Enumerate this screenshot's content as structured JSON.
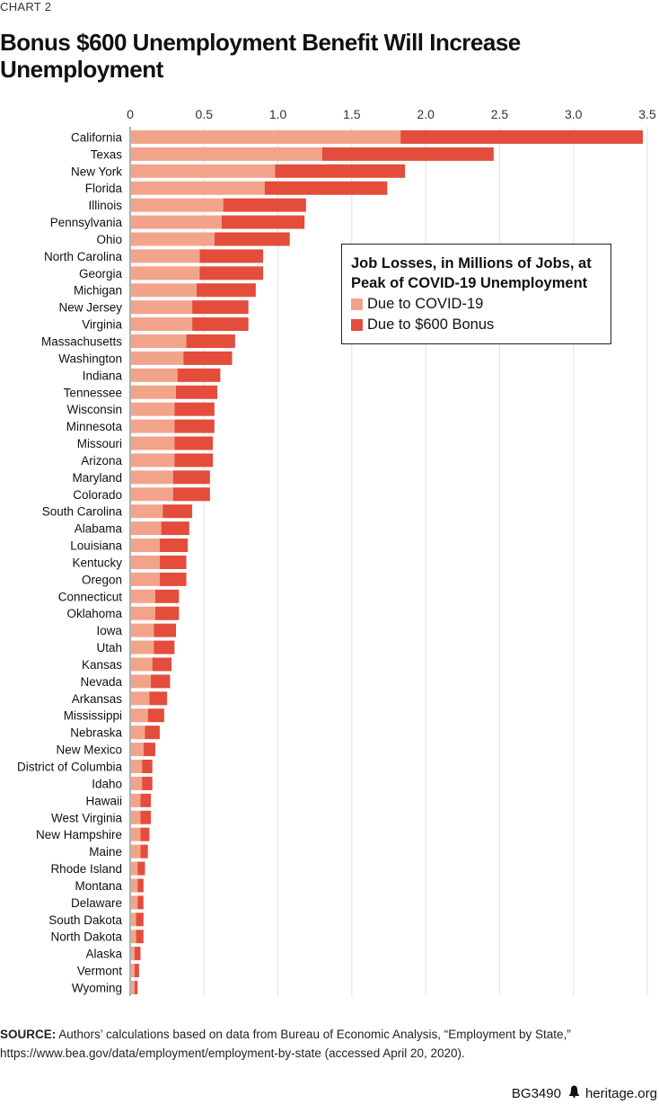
{
  "header": {
    "eyebrow": "CHART 2",
    "title": "Bonus $600 Unemployment Benefit Will Increase Unemployment"
  },
  "legend": {
    "title_line1": "Job Losses, in Millions of Jobs, at",
    "title_line2": "Peak of COVID-19 Unemployment",
    "items": [
      {
        "label": "Due to COVID-19",
        "color": "#f2a48b"
      },
      {
        "label": "Due to $600 Bonus",
        "color": "#e44c3c"
      }
    ]
  },
  "source": {
    "label": "SOURCE:",
    "text": "Authors’ calculations based on data from Bureau of Economic Analysis, “Employment by State,” https://www.bea.gov/data/employment/employment-by-state (accessed April 20, 2020)."
  },
  "footer": {
    "code": "BG3490",
    "icon": "liberty-bell-icon",
    "site": "heritage.org"
  },
  "colors": {
    "covid": "#f2a48b",
    "bonus": "#e44c3c",
    "grid": "#e2e2e2",
    "axis": "#b0b0b0"
  },
  "chart_data": {
    "type": "bar",
    "orientation": "horizontal",
    "stacked": true,
    "title": "Bonus $600 Unemployment Benefit Will Increase Unemployment",
    "xlabel": "Job Losses, in Millions of Jobs, at Peak of COVID-19 Unemployment",
    "ylabel": "",
    "xlim": [
      0,
      3.5
    ],
    "xticks": [
      0,
      0.5,
      1.0,
      1.5,
      2.0,
      2.5,
      3.0,
      3.5
    ],
    "xtick_labels": [
      "0",
      "0.5",
      "1.0",
      "1.5",
      "2.0",
      "2.5",
      "3.0",
      "3.5"
    ],
    "grid": true,
    "legend_position": "center-right",
    "categories": [
      "California",
      "Texas",
      "New York",
      "Florida",
      "Illinois",
      "Pennsylvania",
      "Ohio",
      "North Carolina",
      "Georgia",
      "Michigan",
      "New Jersey",
      "Virginia",
      "Massachusetts",
      "Washington",
      "Indiana",
      "Tennessee",
      "Wisconsin",
      "Minnesota",
      "Missouri",
      "Arizona",
      "Maryland",
      "Colorado",
      "South Carolina",
      "Alabama",
      "Louisiana",
      "Kentucky",
      "Oregon",
      "Connecticut",
      "Oklahoma",
      "Iowa",
      "Utah",
      "Kansas",
      "Nevada",
      "Arkansas",
      "Mississippi",
      "Nebraska",
      "New Mexico",
      "District of Columbia",
      "Idaho",
      "Hawaii",
      "West Virginia",
      "New Hampshire",
      "Maine",
      "Rhode Island",
      "Montana",
      "Delaware",
      "South Dakota",
      "North Dakota",
      "Alaska",
      "Vermont",
      "Wyoming"
    ],
    "series": [
      {
        "name": "Due to COVID-19",
        "values": [
          1.83,
          1.3,
          0.98,
          0.91,
          0.63,
          0.62,
          0.57,
          0.47,
          0.47,
          0.45,
          0.42,
          0.42,
          0.38,
          0.36,
          0.32,
          0.31,
          0.3,
          0.3,
          0.3,
          0.3,
          0.29,
          0.29,
          0.22,
          0.21,
          0.2,
          0.2,
          0.2,
          0.17,
          0.17,
          0.16,
          0.16,
          0.15,
          0.14,
          0.13,
          0.12,
          0.1,
          0.09,
          0.08,
          0.08,
          0.07,
          0.07,
          0.07,
          0.07,
          0.05,
          0.05,
          0.05,
          0.04,
          0.04,
          0.03,
          0.03,
          0.03
        ]
      },
      {
        "name": "Due to $600 Bonus",
        "values": [
          1.64,
          1.16,
          0.88,
          0.83,
          0.56,
          0.56,
          0.51,
          0.43,
          0.43,
          0.4,
          0.38,
          0.38,
          0.33,
          0.33,
          0.29,
          0.28,
          0.27,
          0.27,
          0.26,
          0.26,
          0.25,
          0.25,
          0.2,
          0.19,
          0.19,
          0.18,
          0.18,
          0.16,
          0.16,
          0.15,
          0.14,
          0.13,
          0.13,
          0.12,
          0.11,
          0.1,
          0.08,
          0.07,
          0.07,
          0.07,
          0.07,
          0.06,
          0.05,
          0.05,
          0.04,
          0.04,
          0.05,
          0.05,
          0.04,
          0.03,
          0.02
        ]
      }
    ]
  }
}
